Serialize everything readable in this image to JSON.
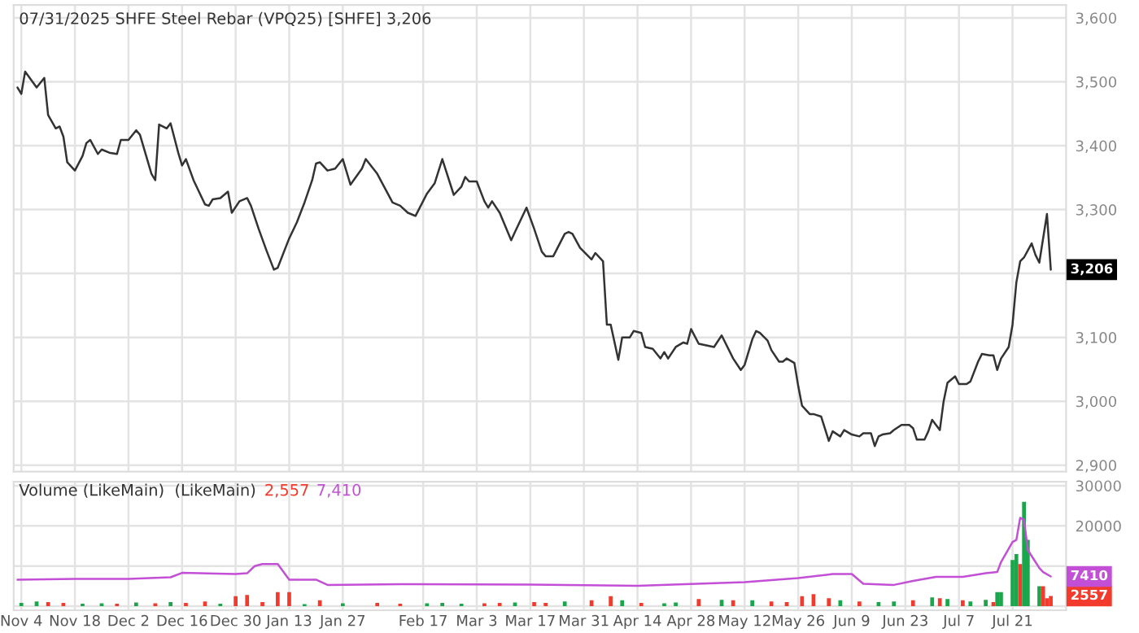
{
  "chart_data": [
    {
      "type": "line",
      "title": "07/31/2025 SHFE Steel Rebar (VPQ25) [SHFE] 3,206",
      "x": [
        "2024-11-03",
        "2024-11-04",
        "2024-11-05",
        "2024-11-08",
        "2024-11-10",
        "2024-11-11",
        "2024-11-13",
        "2024-11-14",
        "2024-11-15",
        "2024-11-16",
        "2024-11-18",
        "2024-11-20",
        "2024-11-21",
        "2024-11-22",
        "2024-11-24",
        "2024-11-25",
        "2024-11-27",
        "2024-11-29",
        "2024-11-30",
        "2024-12-02",
        "2024-12-04",
        "2024-12-05",
        "2024-12-08",
        "2024-12-09",
        "2024-12-10",
        "2024-12-12",
        "2024-12-13",
        "2024-12-15",
        "2024-12-16",
        "2024-12-17",
        "2024-12-19",
        "2024-12-22",
        "2024-12-23",
        "2024-12-24",
        "2024-12-26",
        "2024-12-28",
        "2024-12-29",
        "2024-12-31",
        "2025-01-02",
        "2025-01-03",
        "2025-01-05",
        "2025-01-07",
        "2025-01-09",
        "2025-01-10",
        "2025-01-13",
        "2025-01-15",
        "2025-01-17",
        "2025-01-19",
        "2025-01-20",
        "2025-01-21",
        "2025-01-23",
        "2025-01-25",
        "2025-01-27",
        "2025-01-29",
        "2025-02-01",
        "2025-02-02",
        "2025-02-05",
        "2025-02-09",
        "2025-02-11",
        "2025-02-13",
        "2025-02-15",
        "2025-02-18",
        "2025-02-20",
        "2025-02-22",
        "2025-02-25",
        "2025-02-27",
        "2025-02-28",
        "2025-03-01",
        "2025-03-03",
        "2025-03-05",
        "2025-03-06",
        "2025-03-07",
        "2025-03-09",
        "2025-03-12",
        "2025-03-13",
        "2025-03-16",
        "2025-03-18",
        "2025-03-20",
        "2025-03-21",
        "2025-03-23",
        "2025-03-26",
        "2025-03-27",
        "2025-03-28",
        "2025-03-30",
        "2025-04-02",
        "2025-04-03",
        "2025-04-05",
        "2025-04-06",
        "2025-04-07",
        "2025-04-09",
        "2025-04-10",
        "2025-04-12",
        "2025-04-13",
        "2025-04-15",
        "2025-04-16",
        "2025-04-18",
        "2025-04-20",
        "2025-04-21",
        "2025-04-22",
        "2025-04-24",
        "2025-04-26",
        "2025-04-27",
        "2025-04-28",
        "2025-04-30",
        "2025-05-04",
        "2025-05-06",
        "2025-05-09",
        "2025-05-11",
        "2025-05-12",
        "2025-05-14",
        "2025-05-15",
        "2025-05-16",
        "2025-05-18",
        "2025-05-19",
        "2025-05-21",
        "2025-05-22",
        "2025-05-23",
        "2025-05-25",
        "2025-05-26",
        "2025-05-27",
        "2025-05-29",
        "2025-05-30",
        "2025-06-01",
        "2025-06-03",
        "2025-06-04",
        "2025-06-06",
        "2025-06-07",
        "2025-06-09",
        "2025-06-11",
        "2025-06-12",
        "2025-06-14",
        "2025-06-15",
        "2025-06-16",
        "2025-06-17",
        "2025-06-19",
        "2025-06-20",
        "2025-06-22",
        "2025-06-24",
        "2025-06-25",
        "2025-06-26",
        "2025-06-28",
        "2025-06-29",
        "2025-06-30",
        "2025-07-02",
        "2025-07-03",
        "2025-07-04",
        "2025-07-06",
        "2025-07-07",
        "2025-07-09",
        "2025-07-10",
        "2025-07-12",
        "2025-07-13",
        "2025-07-15",
        "2025-07-16",
        "2025-07-17",
        "2025-07-18",
        "2025-07-20",
        "2025-07-21",
        "2025-07-22",
        "2025-07-23",
        "2025-07-24",
        "2025-07-26",
        "2025-07-27",
        "2025-07-28",
        "2025-07-30",
        "2025-07-31"
      ],
      "series": [
        {
          "color": "#333333",
          "values": [
            3491,
            3481,
            3516,
            3491,
            3506,
            3448,
            3427,
            3430,
            3414,
            3374,
            3361,
            3384,
            3404,
            3409,
            3387,
            3394,
            3389,
            3387,
            3409,
            3409,
            3424,
            3417,
            3356,
            3346,
            3433,
            3427,
            3435,
            3389,
            3369,
            3379,
            3346,
            3308,
            3306,
            3316,
            3318,
            3328,
            3295,
            3313,
            3318,
            3306,
            3270,
            3237,
            3206,
            3209,
            3255,
            3280,
            3311,
            3346,
            3372,
            3374,
            3361,
            3364,
            3379,
            3339,
            3364,
            3379,
            3356,
            3311,
            3306,
            3295,
            3290,
            3325,
            3341,
            3379,
            3323,
            3336,
            3351,
            3344,
            3344,
            3313,
            3303,
            3313,
            3295,
            3252,
            3265,
            3303,
            3270,
            3234,
            3227,
            3227,
            3262,
            3265,
            3262,
            3240,
            3222,
            3232,
            3219,
            3120,
            3120,
            3065,
            3100,
            3100,
            3110,
            3107,
            3085,
            3082,
            3067,
            3077,
            3067,
            3085,
            3092,
            3090,
            3113,
            3090,
            3085,
            3103,
            3067,
            3049,
            3057,
            3097,
            3110,
            3107,
            3095,
            3080,
            3062,
            3062,
            3067,
            3060,
            3024,
            2993,
            2980,
            2980,
            2976,
            2938,
            2953,
            2945,
            2955,
            2948,
            2945,
            2950,
            2950,
            2930,
            2945,
            2948,
            2950,
            2955,
            2963,
            2963,
            2958,
            2940,
            2940,
            2953,
            2971,
            2955,
            3000,
            3029,
            3039,
            3027,
            3027,
            3031,
            3062,
            3074,
            3072,
            3072,
            3049,
            3067,
            3085,
            3120,
            3186,
            3219,
            3225,
            3247,
            3229,
            3217,
            3293,
            3206
          ]
        }
      ],
      "xlim": [
        "2024-11-02",
        "2025-08-04"
      ],
      "xticks": [
        {
          "value": "2024-11-04",
          "label": null
        },
        {
          "value": "2024-11-18",
          "label": null
        },
        {
          "value": "2024-12-02",
          "label": null
        },
        {
          "value": "2024-12-16",
          "label": null
        },
        {
          "value": "2024-12-30",
          "label": null
        },
        {
          "value": "2025-01-13",
          "label": null
        },
        {
          "value": "2025-01-27",
          "label": null
        },
        {
          "value": "2025-02-17",
          "label": null
        },
        {
          "value": "2025-03-03",
          "label": null
        },
        {
          "value": "2025-03-17",
          "label": null
        },
        {
          "value": "2025-03-31",
          "label": null
        },
        {
          "value": "2025-04-14",
          "label": null
        },
        {
          "value": "2025-04-28",
          "label": null
        },
        {
          "value": "2025-05-12",
          "label": null
        },
        {
          "value": "2025-05-26",
          "label": null
        },
        {
          "value": "2025-06-09",
          "label": null
        },
        {
          "value": "2025-06-23",
          "label": null
        },
        {
          "value": "2025-07-07",
          "label": null
        },
        {
          "value": "2025-07-21",
          "label": null
        }
      ],
      "ylim": [
        2890,
        3620
      ],
      "yticks": [
        {
          "value": 2900,
          "label": "2,900"
        },
        {
          "value": 3000,
          "label": "3,000"
        },
        {
          "value": 3100,
          "label": "3,100"
        },
        {
          "value": 3200,
          "label": null
        },
        {
          "value": 3300,
          "label": "3,300"
        },
        {
          "value": 3400,
          "label": "3,400"
        },
        {
          "value": 3500,
          "label": "3,500"
        },
        {
          "value": 3600,
          "label": "3,600"
        }
      ],
      "grid": true,
      "tick_labels": "y",
      "annotations": [
        {
          "text": "3,206",
          "x": "2025-07-31",
          "y": 3206
        }
      ]
    },
    {
      "type": "bar",
      "title": "Volume (LikeMain)  (LikeMain)",
      "series": [
        {
          "type": "bar",
          "x": [
            "2024-11-04",
            "2024-11-08",
            "2024-11-11",
            "2024-11-15",
            "2024-11-20",
            "2024-11-25",
            "2024-11-29",
            "2024-12-04",
            "2024-12-09",
            "2024-12-13",
            "2024-12-17",
            "2024-12-22",
            "2024-12-26",
            "2024-12-30",
            "2025-01-02",
            "2025-01-06",
            "2025-01-10",
            "2025-01-13",
            "2025-01-17",
            "2025-01-21",
            "2025-01-27",
            "2025-02-05",
            "2025-02-11",
            "2025-02-18",
            "2025-02-22",
            "2025-02-27",
            "2025-03-05",
            "2025-03-09",
            "2025-03-13",
            "2025-03-18",
            "2025-03-21",
            "2025-03-26",
            "2025-04-02",
            "2025-04-07",
            "2025-04-10",
            "2025-04-15",
            "2025-04-21",
            "2025-04-24",
            "2025-04-30",
            "2025-05-06",
            "2025-05-09",
            "2025-05-14",
            "2025-05-19",
            "2025-05-23",
            "2025-05-27",
            "2025-05-30",
            "2025-06-03",
            "2025-06-06",
            "2025-06-11",
            "2025-06-16",
            "2025-06-20",
            "2025-06-25",
            "2025-06-30",
            "2025-07-02",
            "2025-07-04",
            "2025-07-08",
            "2025-07-10",
            "2025-07-14",
            "2025-07-16",
            "2025-07-17",
            "2025-07-18",
            "2025-07-21",
            "2025-07-22",
            "2025-07-23",
            "2025-07-24",
            "2025-07-25",
            "2025-07-28",
            "2025-07-29",
            "2025-07-30",
            "2025-07-31"
          ],
          "values": [
            800,
            1200,
            1000,
            800,
            600,
            700,
            600,
            900,
            700,
            1000,
            800,
            1200,
            600,
            2500,
            2800,
            1000,
            3500,
            3500,
            500,
            1500,
            700,
            800,
            600,
            700,
            800,
            600,
            700,
            800,
            900,
            1000,
            800,
            1200,
            1500,
            2500,
            1500,
            800,
            700,
            900,
            1800,
            1600,
            1500,
            1500,
            1200,
            1000,
            2500,
            3000,
            2000,
            1500,
            1200,
            1000,
            1200,
            1500,
            2200,
            2000,
            1800,
            1500,
            1200,
            1600,
            1000,
            3500,
            3500,
            11500,
            13000,
            10500,
            26000,
            16500,
            5000,
            5000,
            2000,
            2557
          ],
          "colors": [
            "#1aa64a",
            "#1aa64a",
            "#f23b2c",
            "#f23b2c",
            "#1aa64a",
            "#1aa64a",
            "#f23b2c",
            "#1aa64a",
            "#f23b2c",
            "#1aa64a",
            "#f23b2c",
            "#f23b2c",
            "#1aa64a",
            "#f23b2c",
            "#f23b2c",
            "#f23b2c",
            "#f23b2c",
            "#f23b2c",
            "#1aa64a",
            "#f23b2c",
            "#1aa64a",
            "#f23b2c",
            "#f23b2c",
            "#1aa64a",
            "#1aa64a",
            "#1aa64a",
            "#f23b2c",
            "#f23b2c",
            "#1aa64a",
            "#f23b2c",
            "#f23b2c",
            "#1aa64a",
            "#f23b2c",
            "#f23b2c",
            "#1aa64a",
            "#f23b2c",
            "#1aa64a",
            "#1aa64a",
            "#f23b2c",
            "#1aa64a",
            "#f23b2c",
            "#1aa64a",
            "#f23b2c",
            "#f23b2c",
            "#f23b2c",
            "#f23b2c",
            "#f23b2c",
            "#1aa64a",
            "#f23b2c",
            "#1aa64a",
            "#1aa64a",
            "#f23b2c",
            "#1aa64a",
            "#f23b2c",
            "#1aa64a",
            "#f23b2c",
            "#1aa64a",
            "#1aa64a",
            "#f23b2c",
            "#1aa64a",
            "#1aa64a",
            "#1aa64a",
            "#1aa64a",
            "#f23b2c",
            "#1aa64a",
            "#1aa64a",
            "#1aa64a",
            "#f23b2c",
            "#f23b2c",
            "#f23b2c"
          ]
        },
        {
          "type": "line",
          "color": "#c34fd6",
          "x": [
            "2024-11-03",
            "2024-11-18",
            "2024-12-02",
            "2024-12-13",
            "2024-12-16",
            "2024-12-30",
            "2025-01-02",
            "2025-01-04",
            "2025-01-06",
            "2025-01-10",
            "2025-01-13",
            "2025-01-20",
            "2025-01-23",
            "2025-02-11",
            "2025-03-17",
            "2025-04-14",
            "2025-05-12",
            "2025-05-26",
            "2025-06-04",
            "2025-06-09",
            "2025-06-12",
            "2025-06-20",
            "2025-06-25",
            "2025-07-01",
            "2025-07-08",
            "2025-07-14",
            "2025-07-17",
            "2025-07-18",
            "2025-07-21",
            "2025-07-22",
            "2025-07-23",
            "2025-07-24",
            "2025-07-25",
            "2025-07-28",
            "2025-07-29",
            "2025-07-31"
          ],
          "values": [
            6600,
            6800,
            6800,
            7200,
            8300,
            8000,
            8200,
            10000,
            10500,
            10500,
            6600,
            6600,
            5300,
            5500,
            5400,
            5100,
            6000,
            7000,
            8000,
            8000,
            5600,
            5300,
            6300,
            7300,
            7300,
            8200,
            8500,
            11000,
            16000,
            16500,
            22000,
            21500,
            14000,
            9500,
            8500,
            7410
          ]
        }
      ],
      "xlim": [
        "2024-11-02",
        "2025-08-04"
      ],
      "xticks": [
        {
          "value": "2024-11-04",
          "label": "Nov 4"
        },
        {
          "value": "2024-11-18",
          "label": "Nov 18"
        },
        {
          "value": "2024-12-02",
          "label": "Dec 2"
        },
        {
          "value": "2024-12-16",
          "label": "Dec 16"
        },
        {
          "value": "2024-12-30",
          "label": "Dec 30"
        },
        {
          "value": "2025-01-13",
          "label": "Jan 13"
        },
        {
          "value": "2025-01-27",
          "label": "Jan 27"
        },
        {
          "value": "2025-02-17",
          "label": "Feb 17"
        },
        {
          "value": "2025-03-03",
          "label": "Mar 3"
        },
        {
          "value": "2025-03-17",
          "label": "Mar 17"
        },
        {
          "value": "2025-03-31",
          "label": "Mar 31"
        },
        {
          "value": "2025-04-14",
          "label": "Apr 14"
        },
        {
          "value": "2025-04-28",
          "label": "Apr 28"
        },
        {
          "value": "2025-05-12",
          "label": "May 12"
        },
        {
          "value": "2025-05-26",
          "label": "May 26"
        },
        {
          "value": "2025-06-09",
          "label": "Jun 9"
        },
        {
          "value": "2025-06-23",
          "label": "Jun 23"
        },
        {
          "value": "2025-07-07",
          "label": "Jul 7"
        },
        {
          "value": "2025-07-21",
          "label": "Jul 21"
        }
      ],
      "ylim": [
        -1000,
        31000
      ],
      "yticks": [
        {
          "value": 0,
          "label": null
        },
        {
          "value": 10000,
          "label": null
        },
        20000,
        30000
      ],
      "grid": true,
      "annotations": [
        "2,557",
        "7,410",
        {
          "text": "2557",
          "x": "2025-07-31",
          "y": 2557
        },
        {
          "text": "7410",
          "x": "2025-07-31",
          "y": 7410
        }
      ]
    }
  ]
}
